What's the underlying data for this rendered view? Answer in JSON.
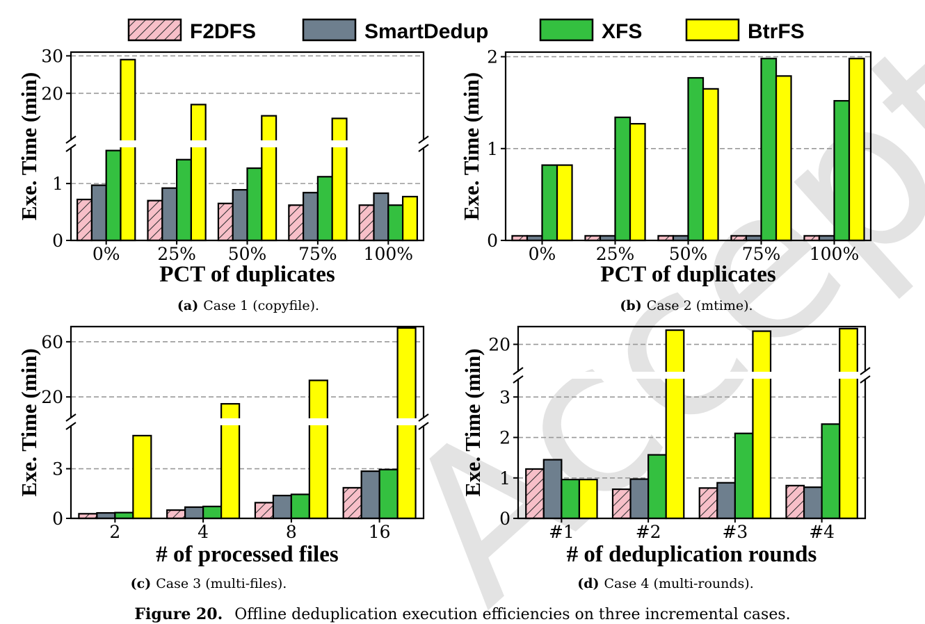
{
  "legend": [
    {
      "name": "F2DFS",
      "color": "#f7bfc8",
      "hatch": true
    },
    {
      "name": "SmartDedup",
      "color": "#6e7f8e",
      "hatch": false
    },
    {
      "name": "XFS",
      "color": "#34c040",
      "hatch": false
    },
    {
      "name": "BtrFS",
      "color": "#ffff00",
      "hatch": false
    }
  ],
  "watermark": "Accepted",
  "figure_caption": {
    "label": "Figure 20.",
    "text": "Offline deduplication execution efficiencies on three incremental cases."
  },
  "chart_data": [
    {
      "type": "bar",
      "caption_label": "(a)",
      "caption_text": "Case 1 (copyfile).",
      "xlabel": "PCT of duplicates",
      "ylabel": "Exe. Time (min)",
      "categories": [
        "0%",
        "25%",
        "50%",
        "75%",
        "100%"
      ],
      "broken_axis": true,
      "lower_range": [
        0,
        1.6
      ],
      "upper_range": [
        8,
        31
      ],
      "lower_ticks": [
        "0",
        "1"
      ],
      "upper_ticks": [
        "20",
        "30"
      ],
      "grid": true,
      "legend_position": "top",
      "series": [
        {
          "name": "F2DFS",
          "values": [
            0.72,
            0.7,
            0.65,
            0.62,
            0.62
          ]
        },
        {
          "name": "SmartDedup",
          "values": [
            0.97,
            0.92,
            0.89,
            0.84,
            0.83
          ]
        },
        {
          "name": "XFS",
          "values": [
            1.58,
            1.42,
            1.27,
            1.12,
            0.62
          ]
        },
        {
          "name": "BtrFS",
          "values": [
            29,
            17,
            14,
            13.3,
            0.77
          ]
        }
      ]
    },
    {
      "type": "bar",
      "caption_label": "(b)",
      "caption_text": "Case 2 (mtime).",
      "xlabel": "PCT of duplicates",
      "ylabel": "Exe. Time (min)",
      "categories": [
        "0%",
        "25%",
        "50%",
        "75%",
        "100%"
      ],
      "broken_axis": false,
      "ylim": [
        0,
        2.05
      ],
      "yticks": [
        "0",
        "1",
        "2"
      ],
      "grid": true,
      "legend_position": "top",
      "series": [
        {
          "name": "F2DFS",
          "values": [
            0.05,
            0.05,
            0.05,
            0.05,
            0.05
          ]
        },
        {
          "name": "SmartDedup",
          "values": [
            0.05,
            0.05,
            0.05,
            0.05,
            0.05
          ]
        },
        {
          "name": "XFS",
          "values": [
            0.82,
            1.34,
            1.77,
            1.98,
            1.52
          ]
        },
        {
          "name": "BtrFS",
          "values": [
            0.82,
            1.27,
            1.65,
            1.79,
            1.98
          ]
        }
      ]
    },
    {
      "type": "bar",
      "caption_label": "(c)",
      "caption_text": "Case 3 (multi-files).",
      "xlabel": "# of processed files",
      "ylabel": "Exe. Time (min)",
      "categories": [
        "2",
        "4",
        "8",
        "16"
      ],
      "broken_axis": true,
      "lower_range": [
        0,
        5.5
      ],
      "upper_range": [
        6,
        71
      ],
      "lower_ticks": [
        "0",
        "3"
      ],
      "upper_ticks": [
        "20",
        "60"
      ],
      "grid": true,
      "legend_position": "top",
      "series": [
        {
          "name": "F2DFS",
          "values": [
            0.28,
            0.5,
            0.95,
            1.85
          ]
        },
        {
          "name": "SmartDedup",
          "values": [
            0.33,
            0.68,
            1.38,
            2.85
          ]
        },
        {
          "name": "XFS",
          "values": [
            0.35,
            0.72,
            1.45,
            2.95
          ]
        },
        {
          "name": "BtrFS",
          "values": [
            5.0,
            15,
            32,
            70
          ]
        }
      ]
    },
    {
      "type": "bar",
      "caption_label": "(d)",
      "caption_text": "Case 4 (multi-rounds).",
      "xlabel": "# of deduplication rounds",
      "ylabel": "Exe. Time (min)",
      "categories": [
        "#1",
        "#2",
        "#3",
        "#4"
      ],
      "broken_axis": true,
      "lower_range": [
        0,
        3.4
      ],
      "upper_range": [
        15,
        23.5
      ],
      "lower_ticks": [
        "0",
        "1",
        "2",
        "3"
      ],
      "upper_ticks": [
        "20"
      ],
      "grid": true,
      "legend_position": "top",
      "series": [
        {
          "name": "F2DFS",
          "values": [
            1.22,
            0.72,
            0.75,
            0.81
          ]
        },
        {
          "name": "SmartDedup",
          "values": [
            1.45,
            0.97,
            0.88,
            0.77
          ]
        },
        {
          "name": "XFS",
          "values": [
            0.96,
            1.57,
            2.1,
            2.33
          ]
        },
        {
          "name": "BtrFS",
          "values": [
            0.96,
            22.8,
            22.6,
            23.1
          ]
        }
      ]
    }
  ]
}
